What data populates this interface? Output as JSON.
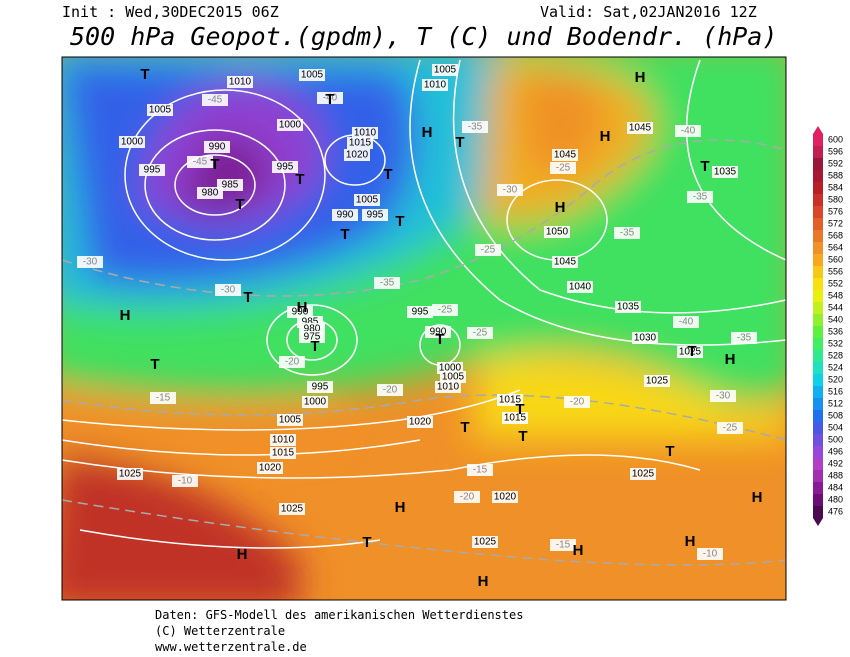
{
  "header": {
    "init": "Init : Wed,30DEC2015 06Z",
    "valid": "Valid: Sat,02JAN2016 12Z",
    "title": "500 hPa Geopot.(gpdm), T (C) und Bodendr. (hPa)"
  },
  "map_labels": {
    "pressure_centers": [
      "T",
      "T",
      "T",
      "T",
      "T",
      "T",
      "T",
      "T",
      "H",
      "H",
      "H",
      "H",
      "T",
      "T",
      "T",
      "H",
      "H",
      "T",
      "T",
      "T",
      "T",
      "T",
      "H",
      "T",
      "T",
      "H",
      "T",
      "H",
      "H",
      "H",
      "H",
      "H",
      "T"
    ],
    "isobar_labels": [
      1010,
      1005,
      1005,
      1010,
      1005,
      1000,
      1000,
      995,
      990,
      985,
      980,
      995,
      1010,
      1015,
      1020,
      1005,
      995,
      990,
      1045,
      1045,
      1035,
      1050,
      1045,
      1040,
      1035,
      1030,
      1025,
      1025,
      990,
      985,
      980,
      975,
      995,
      990,
      1000,
      1005,
      1010,
      995,
      1000,
      1005,
      1010,
      1015,
      1020,
      1020,
      1015,
      1015,
      1020,
      1025,
      1025,
      1025,
      1025
    ],
    "temperature_labels": [
      -45,
      -40,
      -45,
      -35,
      -30,
      -25,
      -30,
      -30,
      -25,
      -25,
      -20,
      -20,
      -15,
      -10,
      -15,
      -20,
      -15,
      -10,
      -20,
      -25,
      -30,
      -35,
      -40,
      -35,
      -35,
      -40,
      -25,
      -35
    ]
  },
  "colorbar": {
    "ticks": [
      476,
      480,
      484,
      488,
      492,
      496,
      500,
      504,
      508,
      512,
      516,
      520,
      524,
      528,
      532,
      536,
      540,
      544,
      548,
      552,
      556,
      560,
      564,
      568,
      572,
      576,
      580,
      584,
      588,
      592,
      596,
      600
    ],
    "colors": [
      "#4b0a4f",
      "#6a0e74",
      "#8a1a94",
      "#a030b0",
      "#b040c8",
      "#9848d8",
      "#7050e0",
      "#4a58e8",
      "#2070f0",
      "#1890f0",
      "#10b0f0",
      "#10d0e8",
      "#20e0c0",
      "#30e890",
      "#40f060",
      "#60f040",
      "#90f030",
      "#c0f020",
      "#e8f010",
      "#f8e010",
      "#f8c818",
      "#f8a820",
      "#f09028",
      "#e87828",
      "#e06028",
      "#d84828",
      "#c83028",
      "#b82028",
      "#a81830",
      "#981838",
      "#c02050",
      "#e02060"
    ]
  },
  "footer": {
    "lines": [
      "Daten: GFS-Modell des amerikanischen Wetterdienstes",
      "(C) Wetterzentrale",
      "www.wetterzentrale.de"
    ]
  }
}
